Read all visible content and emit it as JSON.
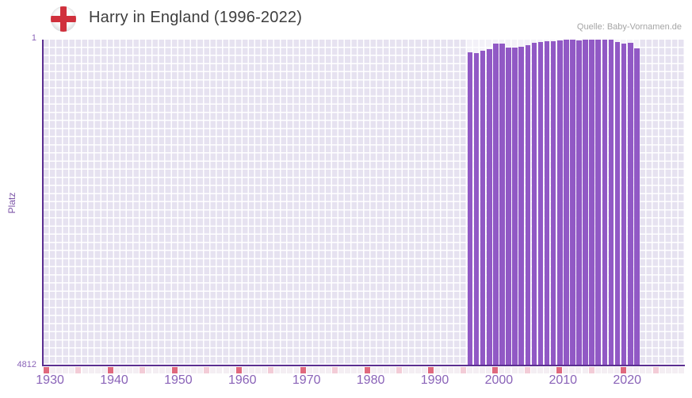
{
  "header": {
    "title": "Harry in England (1996-2022)",
    "flag_icon": "england-flag-icon",
    "source": "Quelle: Baby-Vornamen.de"
  },
  "y_axis": {
    "label": "Platz",
    "top_tick": "1",
    "bottom_tick": "4812"
  },
  "chart_data": {
    "type": "bar",
    "title": "Harry in England (1996-2022)",
    "xlabel": "",
    "ylabel": "Platz",
    "ylim": [
      1,
      4812
    ],
    "y_inverted": true,
    "grid": true,
    "legend": "none",
    "x_grid_range": [
      1930,
      2030
    ],
    "x_ticks": [
      1930,
      1940,
      1950,
      1960,
      1970,
      1980,
      1990,
      2000,
      2010,
      2020
    ],
    "years": [
      1996,
      1997,
      1998,
      1999,
      2000,
      2001,
      2002,
      2003,
      2004,
      2005,
      2006,
      2007,
      2008,
      2009,
      2010,
      2011,
      2012,
      2013,
      2014,
      2015,
      2016,
      2017,
      2018,
      2019,
      2020,
      2021,
      2022
    ],
    "values": [
      185,
      195,
      160,
      140,
      58,
      58,
      115,
      115,
      112,
      80,
      45,
      33,
      22,
      20,
      8,
      3,
      1,
      12,
      5,
      6,
      1,
      2,
      6,
      40,
      55,
      50,
      135
    ],
    "bar_color": "#9159c5"
  },
  "colors": {
    "bar": "#9159c5",
    "axis_line": "#5b2e91",
    "tick_label": "#8a63b8",
    "grid_cell": "#e6e2f0",
    "strip_decade": "#e0697e",
    "strip_half_decade": "#f3ccd7",
    "strip_default": "#f4eef3",
    "title_text": "#3e3e3e",
    "source_text": "#a5a5a5",
    "flag_red": "#d0303c"
  }
}
